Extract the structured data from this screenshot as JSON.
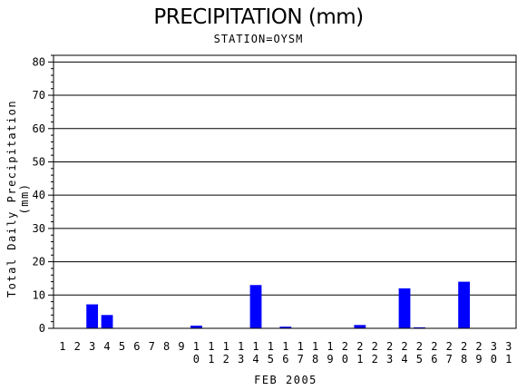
{
  "chart_data": {
    "type": "bar",
    "title": "PRECIPITATION (mm)",
    "subtitle": "STATION=OYSM",
    "ylabel": "Total Daily Precipitation (mm)",
    "xlabel": "FEB 2005",
    "ylim": [
      0,
      82
    ],
    "yticks": [
      0,
      10,
      20,
      30,
      40,
      50,
      60,
      70,
      80
    ],
    "grid": true,
    "categories": [
      "1",
      "2",
      "3",
      "4",
      "5",
      "6",
      "7",
      "8",
      "9",
      "10",
      "11",
      "12",
      "13",
      "14",
      "15",
      "16",
      "17",
      "18",
      "19",
      "20",
      "21",
      "22",
      "23",
      "24",
      "25",
      "26",
      "27",
      "28",
      "29",
      "30",
      "31"
    ],
    "values": [
      0,
      0,
      7.2,
      4.0,
      0,
      0,
      0,
      0,
      0,
      0.8,
      0,
      0,
      0,
      13.0,
      0,
      0.5,
      0,
      0,
      0,
      0,
      1.0,
      0,
      0,
      12.0,
      0.3,
      0,
      0,
      14.0,
      0,
      0,
      0
    ],
    "bar_color": "#0000ff"
  }
}
